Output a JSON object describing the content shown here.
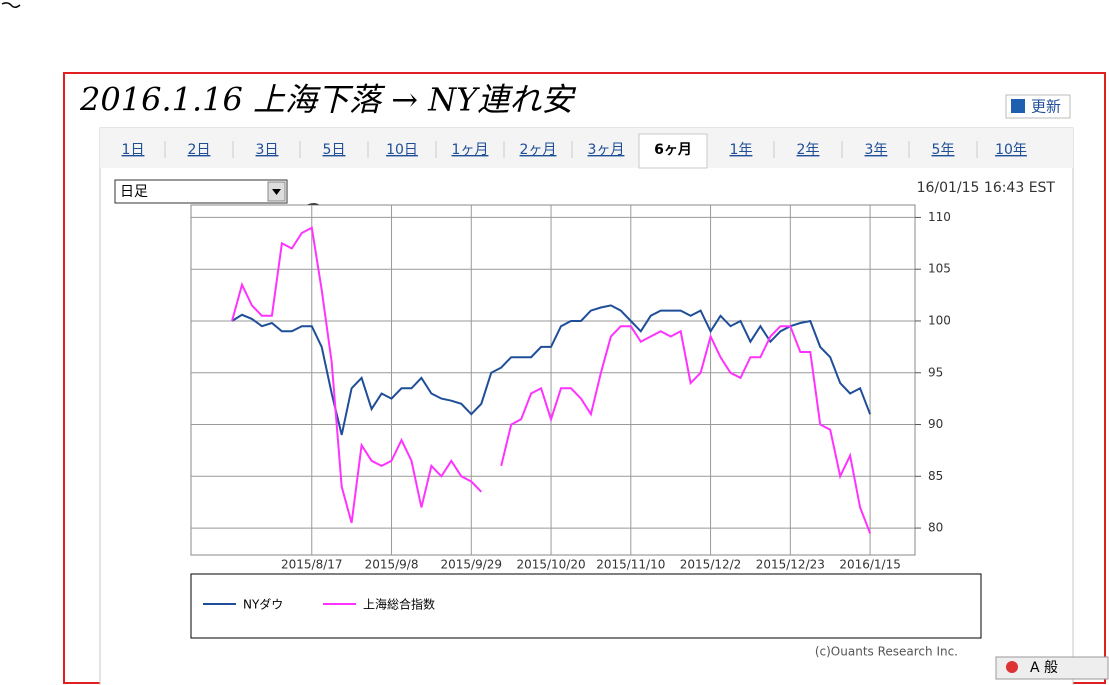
{
  "header": {
    "title": "2016.1.16 上海下落 → NY連れ安",
    "refresh": "更新"
  },
  "tabs": [
    "1日",
    "2日",
    "3日",
    "5日",
    "10日",
    "1ヶ月",
    "2ヶ月",
    "3ヶ月",
    "6ヶ月",
    "1年",
    "2年",
    "3年",
    "5年",
    "10年"
  ],
  "selected_tab": 8,
  "period_select": "日足",
  "timestamp": "16/01/15 16:43 EST",
  "chart_data": {
    "type": "line",
    "categories": [
      null,
      null,
      null,
      null,
      null,
      null,
      null,
      null,
      "2015/8/17",
      null,
      null,
      null,
      null,
      null,
      null,
      null,
      "2015/9/8",
      null,
      null,
      null,
      null,
      null,
      null,
      null,
      "2015/9/29",
      null,
      null,
      null,
      null,
      null,
      null,
      null,
      "2015/10/20",
      null,
      null,
      null,
      null,
      null,
      null,
      null,
      "2015/11/10",
      null,
      null,
      null,
      null,
      null,
      null,
      null,
      "2015/12/2",
      null,
      null,
      null,
      null,
      null,
      null,
      null,
      "2015/12/23",
      null,
      null,
      null,
      null,
      null,
      null,
      null,
      "2016/1/15"
    ],
    "series": [
      {
        "name": "NYダウ",
        "color": "#1f4e99",
        "values": [
          100,
          100.6,
          100.2,
          99.5,
          99.8,
          99,
          99,
          99.5,
          99.5,
          97.5,
          93,
          89,
          93.5,
          94.5,
          91.5,
          93,
          92.5,
          93.5,
          93.5,
          94.5,
          93,
          92.5,
          92.3,
          92,
          91,
          92,
          95,
          95.5,
          96.5,
          96.5,
          96.5,
          97.5,
          97.5,
          99.5,
          100,
          100,
          101,
          101.3,
          101.5,
          101,
          100,
          99,
          100.5,
          101,
          101,
          101,
          100.5,
          101,
          99,
          100.5,
          99.5,
          100,
          98,
          99.5,
          98,
          99,
          99.5,
          99.8,
          100,
          97.5,
          96.5,
          94,
          93,
          93.5,
          91
        ]
      },
      {
        "name": "上海総合指数",
        "color": "#ff33ff",
        "values": [
          100,
          103.5,
          101.5,
          100.5,
          100.5,
          107.5,
          107,
          108.5,
          109,
          103,
          96,
          84,
          80.5,
          88,
          86.5,
          86,
          86.5,
          88.5,
          86.5,
          82,
          86,
          85,
          86.5,
          85,
          84.5,
          83.5,
          null,
          86,
          90,
          90.5,
          93,
          93.5,
          90.5,
          93.5,
          93.5,
          92.5,
          91,
          95,
          98.5,
          99.5,
          99.5,
          98,
          98.5,
          99,
          98.5,
          99,
          94,
          95,
          98.5,
          96.5,
          95,
          94.5,
          96.5,
          96.5,
          98.5,
          99.5,
          99.5,
          97,
          97,
          90,
          89.5,
          85,
          87,
          82,
          79.5
        ]
      }
    ],
    "ylim": [
      77.4,
      111.2
    ],
    "yticks": [
      80,
      85,
      90,
      95,
      100,
      105,
      110
    ],
    "grid": true,
    "legend": "bottom"
  },
  "footer": {
    "copyright": "(c)Ouants Research Inc.",
    "ime_bar": "A 般"
  }
}
